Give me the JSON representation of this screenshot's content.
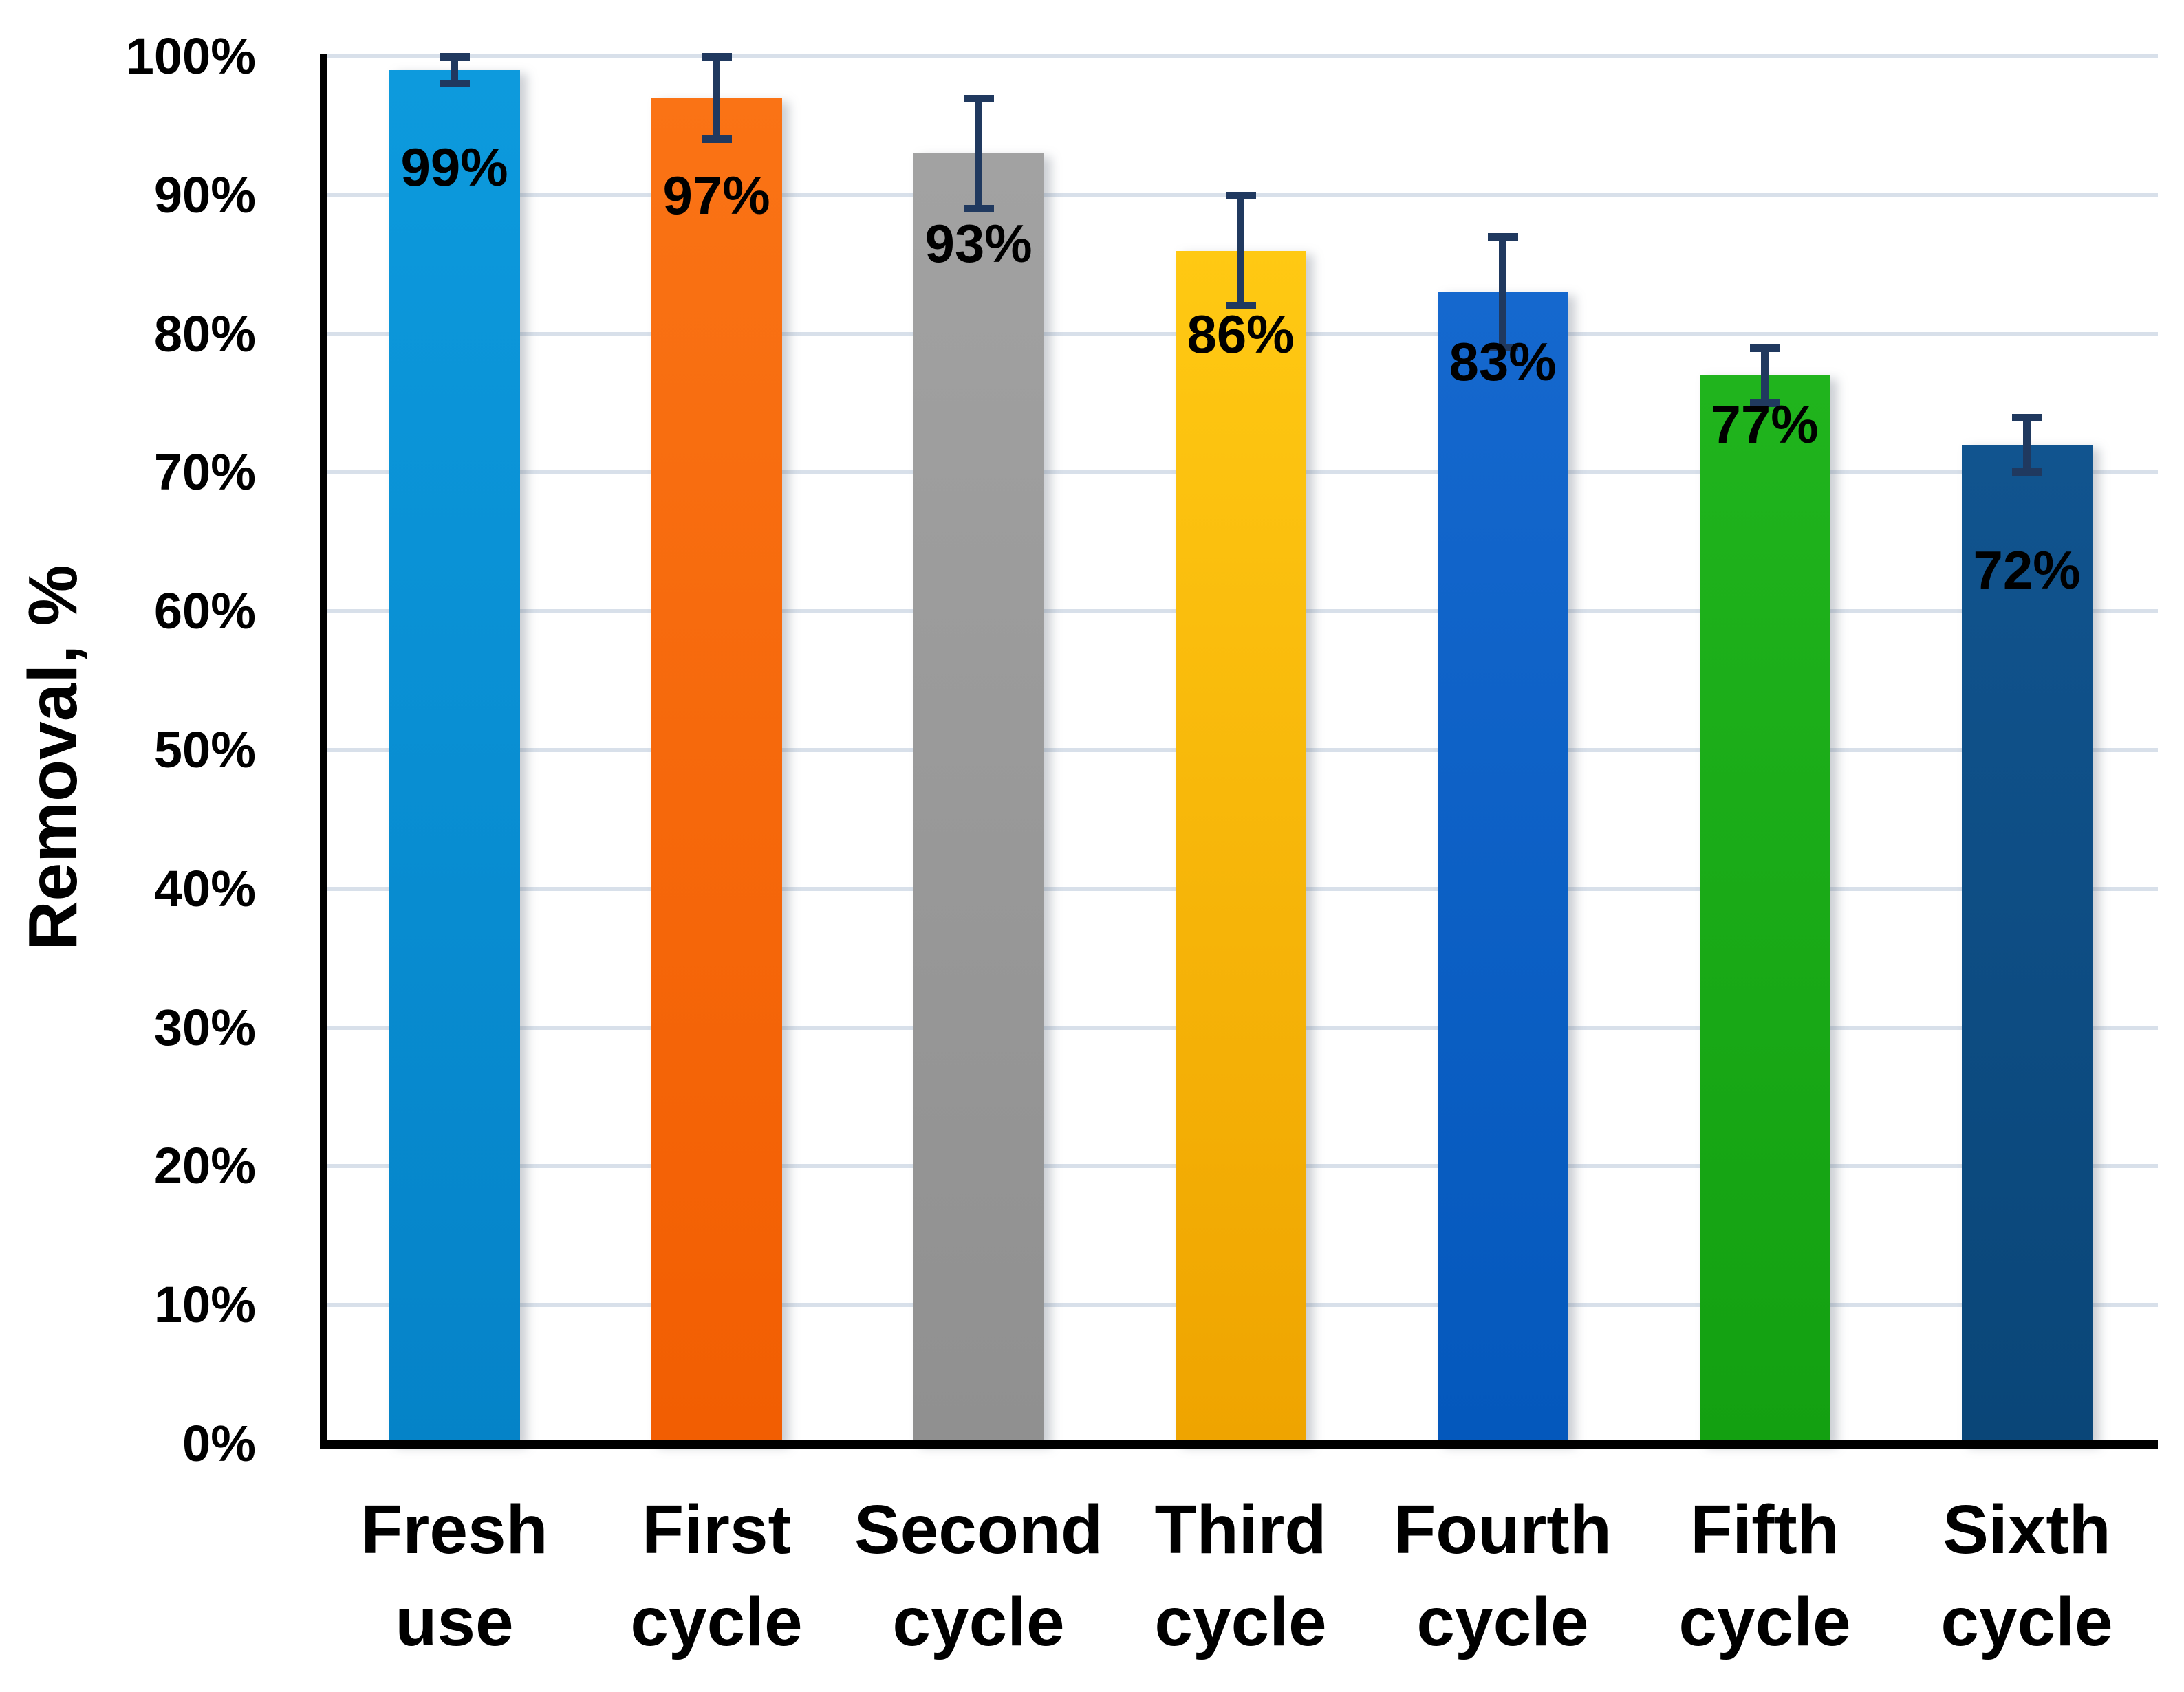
{
  "chart_data": {
    "type": "bar",
    "title": "",
    "xlabel": "",
    "ylabel": "Removal, %",
    "ylim": [
      0,
      100
    ],
    "ytick_step": 10,
    "grid": "horizontal",
    "legend": "none",
    "ytick_percent_labels": [
      "0%",
      "10%",
      "20%",
      "30%",
      "40%",
      "50%",
      "60%",
      "70%",
      "80%",
      "90%",
      "100%"
    ],
    "categories": [
      "Fresh use",
      "First cycle",
      "Second cycle",
      "Third cycle",
      "Fourth cycle",
      "Fifth cycle",
      "Sixth cycle"
    ],
    "category_lines": [
      [
        "Fresh",
        "use"
      ],
      [
        "First",
        "cycle"
      ],
      [
        "Second",
        "cycle"
      ],
      [
        "Third",
        "cycle"
      ],
      [
        "Fourth",
        "cycle"
      ],
      [
        "Fifth",
        "cycle"
      ],
      [
        "Sixth",
        "cycle"
      ]
    ],
    "values": [
      99,
      97,
      93,
      86,
      83,
      77,
      72
    ],
    "value_labels": [
      "99%",
      "97%",
      "93%",
      "86%",
      "83%",
      "77%",
      "72%"
    ],
    "error_bars": [
      1,
      3,
      4,
      4,
      4,
      2,
      2
    ],
    "label_center_pct": [
      92,
      90,
      86.5,
      80,
      78,
      73.5,
      63
    ],
    "colors": {
      "bars_top": [
        "#0D9ADD",
        "#FA7315",
        "#A2A2A2",
        "#FFC913",
        "#1568CE",
        "#20B41D",
        "#11548F"
      ],
      "bars_bottom": [
        "#0583C8",
        "#F25E02",
        "#909090",
        "#EFA400",
        "#0458BC",
        "#13A011",
        "#0A4678"
      ],
      "error_bar": "#20395F",
      "gridline": "#D8E0EA",
      "axis": "#000000",
      "text": "#000000"
    }
  }
}
